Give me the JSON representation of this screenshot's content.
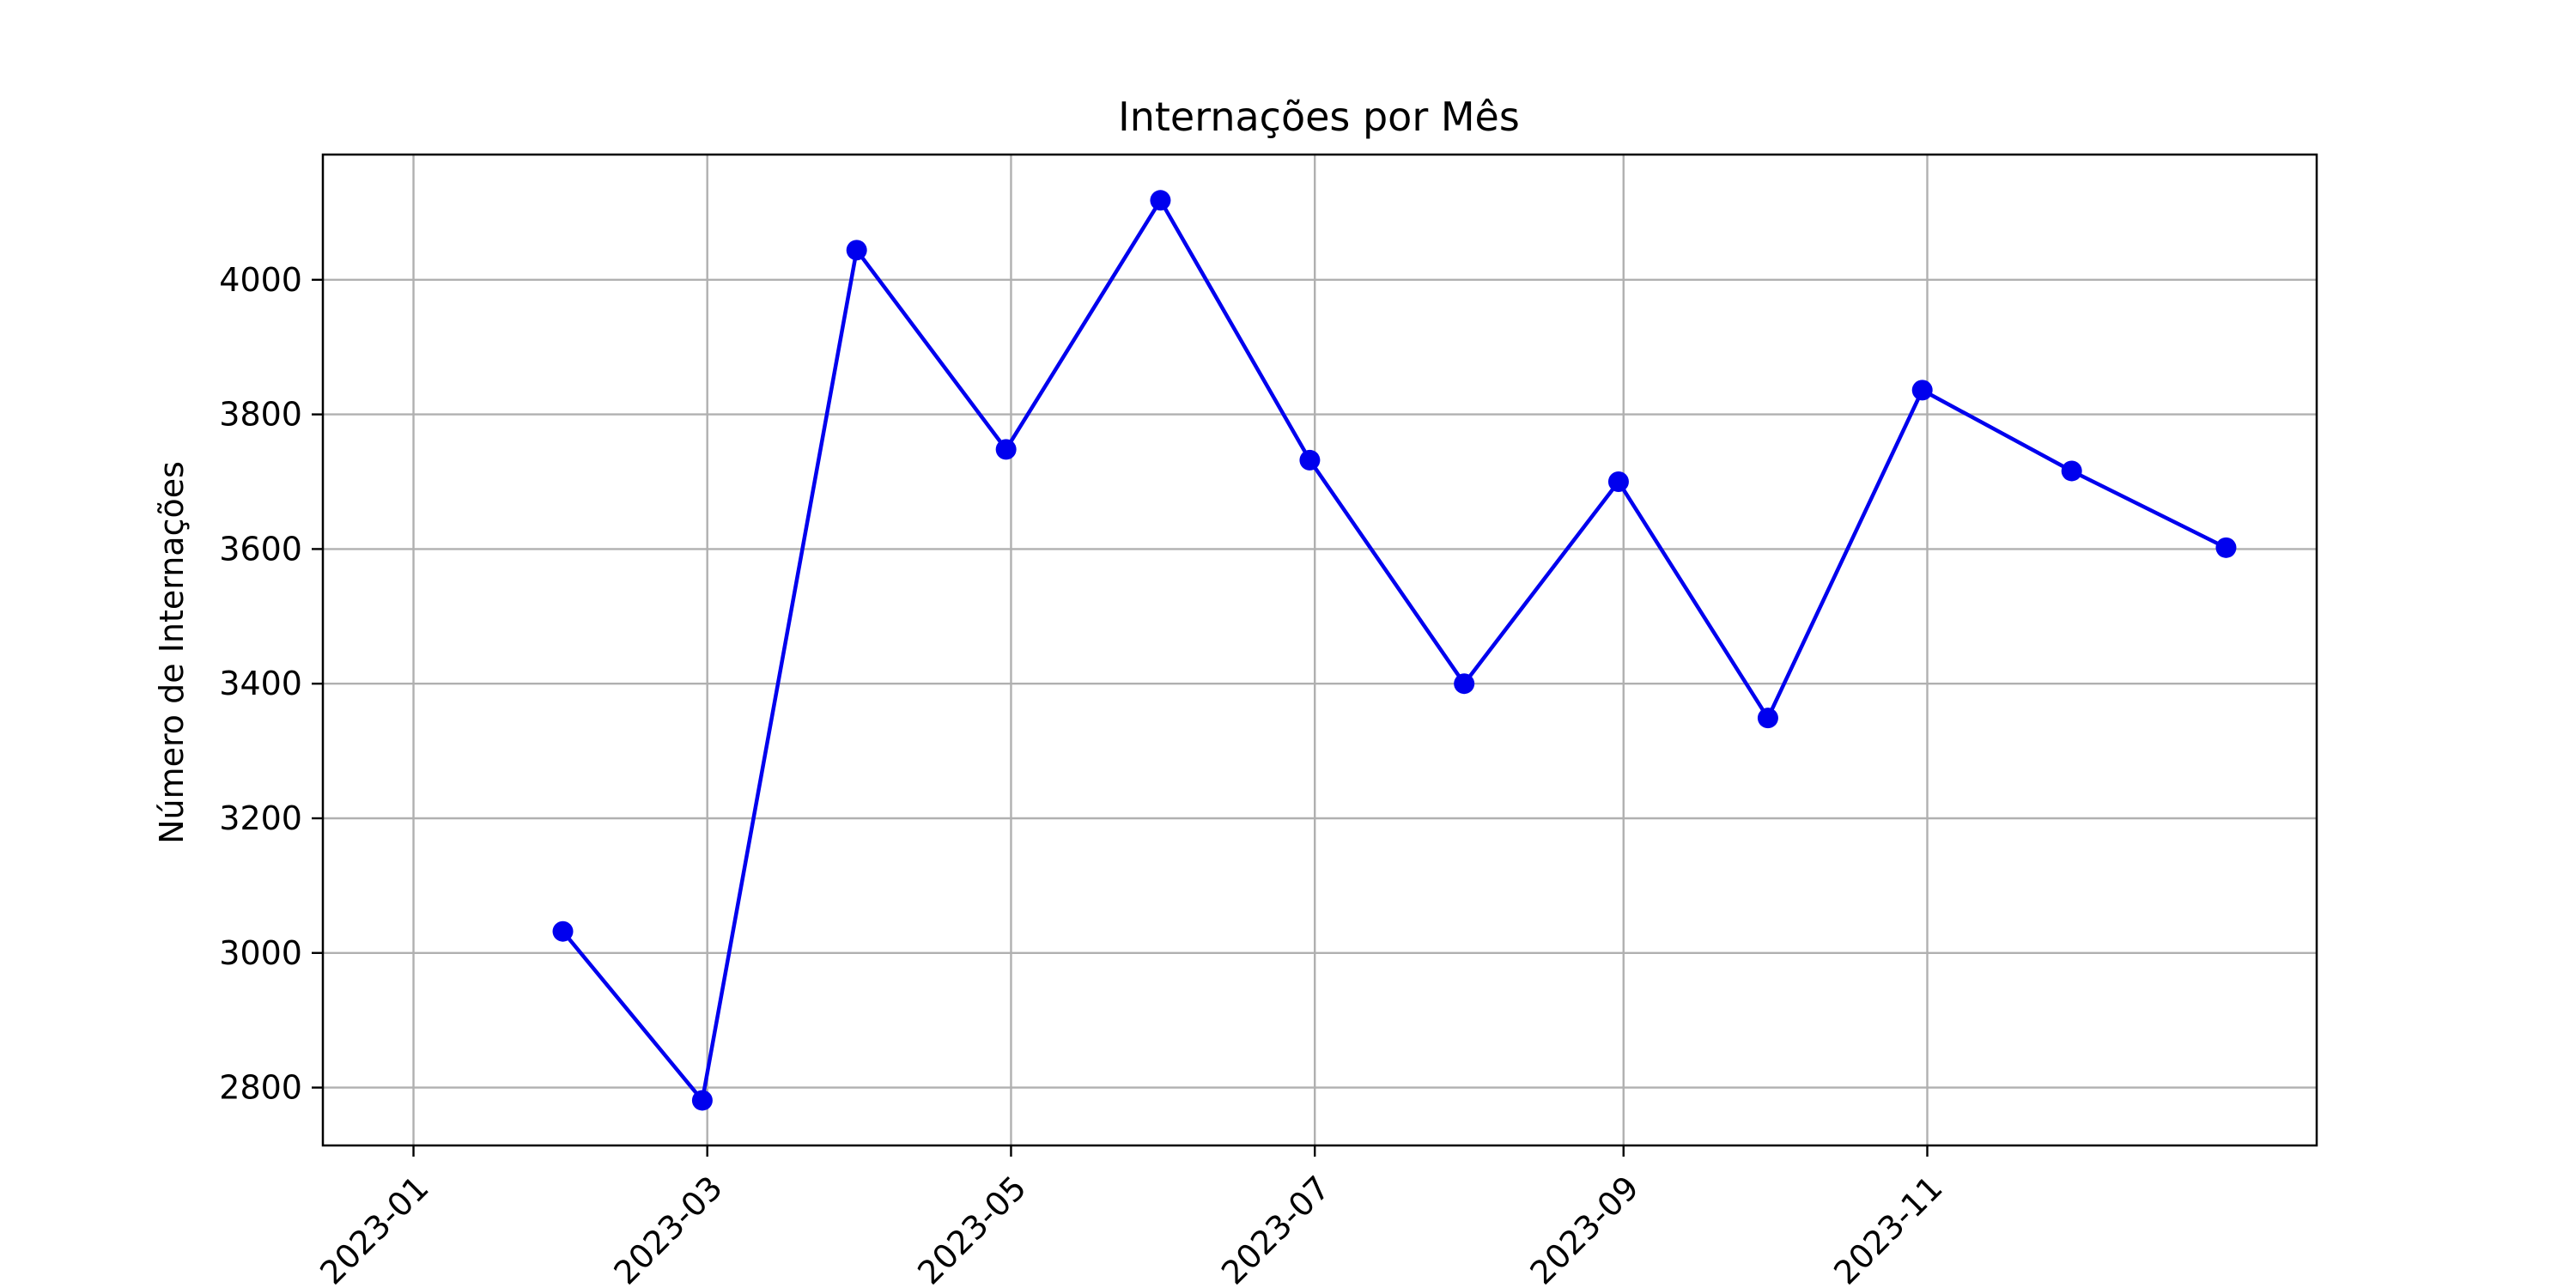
{
  "chart_data": {
    "type": "line",
    "title": "Internações por Mês",
    "xlabel": "",
    "ylabel": "Número de Internações",
    "x": [
      "2023-01-31",
      "2023-02-28",
      "2023-03-31",
      "2023-04-30",
      "2023-05-31",
      "2023-06-30",
      "2023-07-31",
      "2023-08-31",
      "2023-09-30",
      "2023-10-31",
      "2023-11-30",
      "2023-12-31"
    ],
    "series": [
      {
        "values": [
          3032,
          2781,
          4044,
          3748,
          4118,
          3732,
          3400,
          3700,
          3349,
          3836,
          3716,
          3602
        ],
        "color": "#0000ee",
        "marker": "circle"
      }
    ],
    "x_ticks": [
      "2023-01",
      "2023-03",
      "2023-05",
      "2023-07",
      "2023-09",
      "2023-11"
    ],
    "x_tick_rotation": 45,
    "y_ticks": [
      2800,
      3000,
      3200,
      3400,
      3600,
      3800,
      4000
    ],
    "ylim": [
      2714,
      4186
    ],
    "xlim": [
      "2023-01-01",
      "2023-12-31"
    ],
    "grid": true
  }
}
